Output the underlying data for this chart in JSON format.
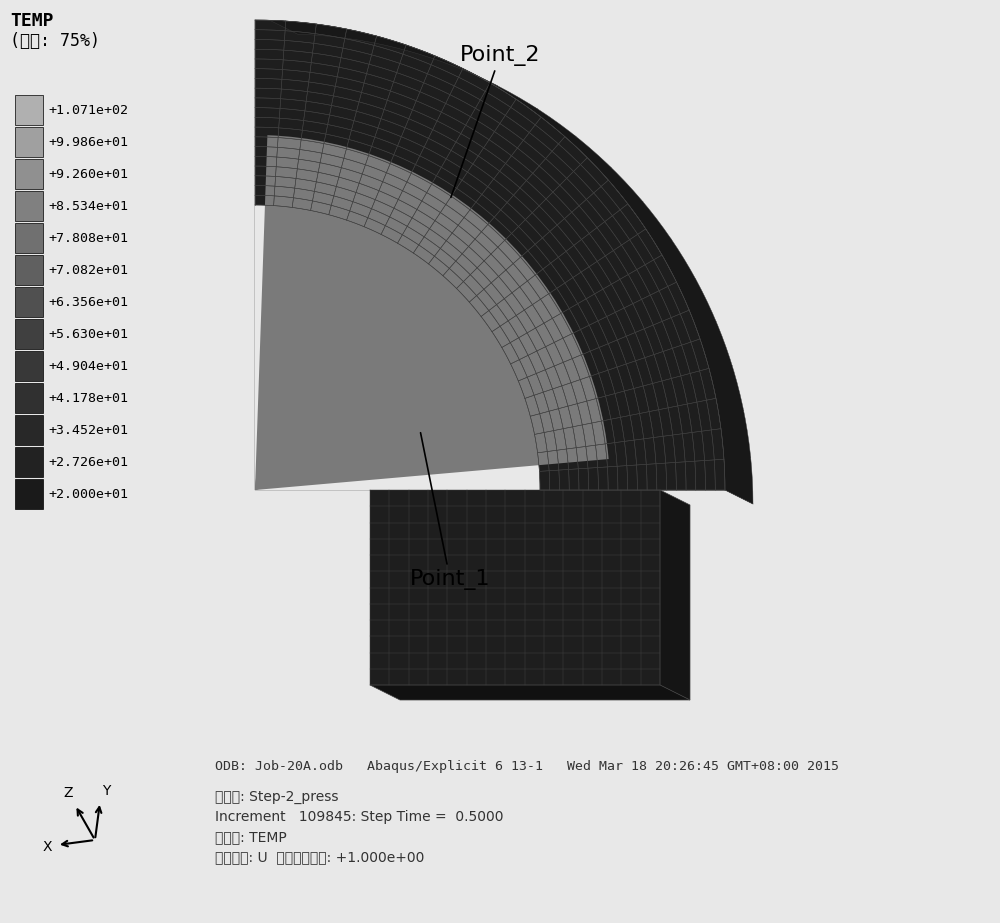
{
  "title": "TEMP",
  "subtitle": "(平均: 75%)",
  "colorbar_labels": [
    "+1.071e+02",
    "+9.986e+01",
    "+9.260e+01",
    "+8.534e+01",
    "+7.808e+01",
    "+7.082e+01",
    "+6.356e+01",
    "+5.630e+01",
    "+4.904e+01",
    "+4.178e+01",
    "+3.452e+01",
    "+2.726e+01",
    "+2.000e+01"
  ],
  "colorbar_colors": [
    "#b0b0b0",
    "#a0a0a0",
    "#909090",
    "#808080",
    "#707070",
    "#606060",
    "#505050",
    "#404040",
    "#383838",
    "#303030",
    "#282828",
    "#222222",
    "#1a1a1a"
  ],
  "point1_label": "Point_1",
  "point2_label": "Point_2",
  "odb_line": "ODB: Job-20A.odb   Abaqus/Explicit 6 13-1   Wed Mar 18 20:26:45 GMT+08:00 2015",
  "info_lines": [
    "分析步: Step-2_press",
    "Increment   109845: Step Time =  0.5000",
    "主变量: TEMP",
    "变形变量: U  变形缩放系数: +1.000e+00"
  ],
  "bg_color": "#e8e8e8",
  "fig_width": 10.0,
  "fig_height": 9.23
}
